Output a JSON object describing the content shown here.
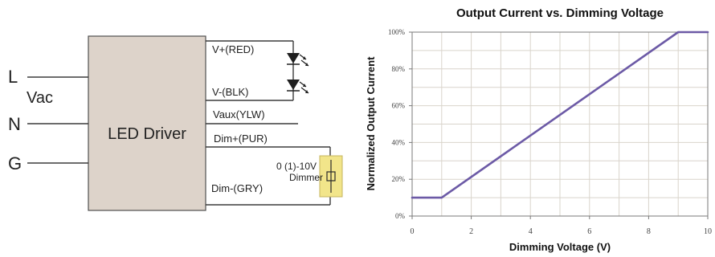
{
  "diagram": {
    "line_inputs": [
      "L",
      "N",
      "G"
    ],
    "vac_label": "Vac",
    "driver_label": "LED Driver",
    "wire_labels": [
      "V+(RED)",
      "V-(BLK)",
      "Vaux(YLW)",
      "Dim+(PUR)",
      "Dim-(GRY)"
    ],
    "dimmer_label_line1": "0 (1)-10V",
    "dimmer_label_line2": "Dimmer",
    "dimmer_fill": "#f2e58a",
    "driver_fill": "#ddd3ca"
  },
  "chart": {
    "title": "Output Current vs. Dimming Voltage",
    "xlabel": "Dimming Voltage (V)",
    "ylabel": "Normalized Output Current",
    "x_ticks": [
      "0",
      "2",
      "4",
      "6",
      "8",
      "10"
    ],
    "y_ticks": [
      "0%",
      "20%",
      "40%",
      "60%",
      "80%",
      "100%"
    ],
    "line_color": "#6c5aa6"
  },
  "chart_data": {
    "type": "line",
    "title": "Output Current vs. Dimming Voltage",
    "xlabel": "Dimming Voltage (V)",
    "ylabel": "Normalized Output Current",
    "xlim": [
      0,
      10
    ],
    "ylim": [
      0,
      100
    ],
    "grid": true,
    "series": [
      {
        "x": [
          0,
          1,
          9,
          10
        ],
        "y": [
          10,
          10,
          100,
          100
        ]
      }
    ]
  }
}
